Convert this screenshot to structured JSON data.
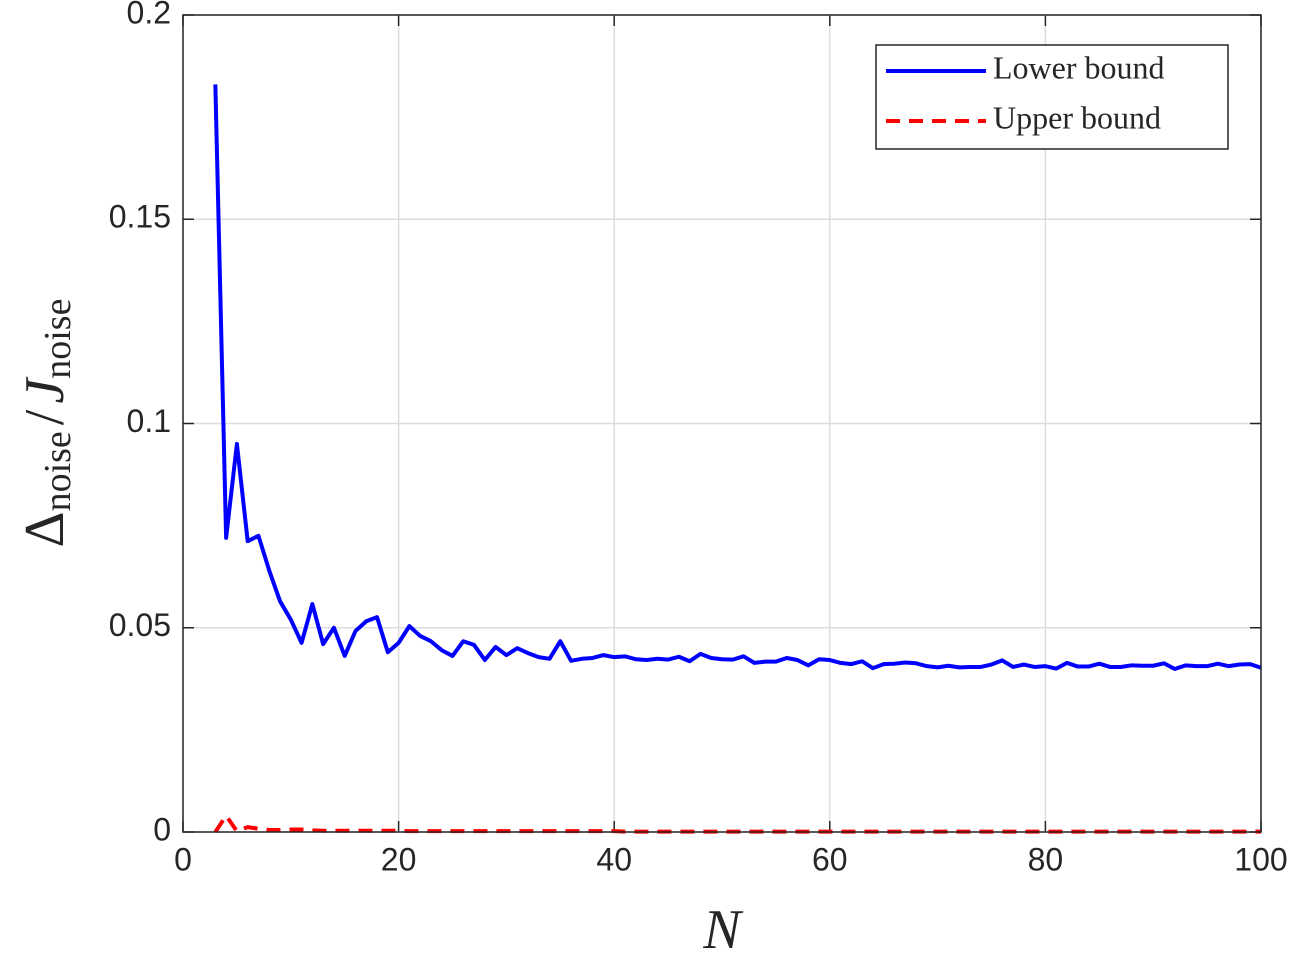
{
  "chart_data": {
    "type": "line",
    "xlabel": "N",
    "ylabel": [
      "Δ",
      "noise",
      "/",
      "J",
      "noise"
    ],
    "x": [
      3,
      4,
      5,
      6,
      7,
      8,
      9,
      10,
      11,
      12,
      13,
      14,
      15,
      16,
      17,
      18,
      19,
      20,
      21,
      22,
      23,
      24,
      25,
      26,
      27,
      28,
      29,
      30,
      31,
      32,
      33,
      34,
      35,
      36,
      37,
      38,
      39,
      40,
      41,
      42,
      43,
      44,
      45,
      46,
      47,
      48,
      49,
      50,
      51,
      52,
      53,
      54,
      55,
      56,
      57,
      58,
      59,
      60,
      61,
      62,
      63,
      64,
      65,
      66,
      67,
      68,
      69,
      70,
      71,
      72,
      73,
      74,
      75,
      76,
      77,
      78,
      79,
      80,
      81,
      82,
      83,
      84,
      85,
      86,
      87,
      88,
      89,
      90,
      91,
      92,
      93,
      94,
      95,
      96,
      97,
      98,
      99,
      100
    ],
    "series": [
      {
        "name": "Lower bound",
        "color": "#0000ff",
        "dash": "solid",
        "values": [
          0.183,
          0.072,
          0.095,
          0.0712,
          0.0725,
          0.064,
          0.0565,
          0.052,
          0.0463,
          0.0558,
          0.046,
          0.05,
          0.0431,
          0.0492,
          0.0516,
          0.0526,
          0.044,
          0.0463,
          0.0504,
          0.048,
          0.0467,
          0.0445,
          0.0431,
          0.0467,
          0.0458,
          0.0421,
          0.0453,
          0.0433,
          0.045,
          0.0438,
          0.0428,
          0.0424,
          0.0467,
          0.0419,
          0.0424,
          0.0426,
          0.0433,
          0.0428,
          0.043,
          0.0423,
          0.0421,
          0.0424,
          0.0422,
          0.0429,
          0.0418,
          0.0436,
          0.0426,
          0.0423,
          0.0422,
          0.043,
          0.0414,
          0.0417,
          0.0417,
          0.0426,
          0.0421,
          0.0408,
          0.0423,
          0.0421,
          0.0414,
          0.0411,
          0.0418,
          0.0401,
          0.0411,
          0.0412,
          0.0415,
          0.0413,
          0.0406,
          0.0403,
          0.0407,
          0.0403,
          0.0404,
          0.0404,
          0.041,
          0.042,
          0.0404,
          0.041,
          0.0404,
          0.0406,
          0.04,
          0.0414,
          0.0405,
          0.0405,
          0.0412,
          0.0404,
          0.0404,
          0.0408,
          0.0407,
          0.0407,
          0.0413,
          0.0399,
          0.0408,
          0.0406,
          0.0406,
          0.0412,
          0.0406,
          0.041,
          0.0411,
          0.0402
        ]
      },
      {
        "name": "Upper bound",
        "color": "#ff0000",
        "dash": "dashed",
        "values": [
          0,
          0.004,
          0.0002,
          0.0012,
          0.0008,
          0.0005,
          0.0005,
          0.0006,
          0.0006,
          0.0004,
          0.0003,
          0.0003,
          0.0003,
          0.0003,
          0.0003,
          0.0003,
          0.0003,
          0.0003,
          0.0002,
          0.0002,
          0.0002,
          0.0002,
          0.0002,
          0.0002,
          0.0002,
          0.0002,
          0.0002,
          0.0002,
          0.0002,
          0.0002,
          0.0002,
          0.0002,
          0.0002,
          0.0002,
          0.0002,
          0.0002,
          0.0002,
          0.0002,
          0.0001,
          0.0001,
          0.0001,
          0.0001,
          0.0001,
          0.0001,
          0.0001,
          0.0001,
          0.0001,
          0.0001,
          0.0001,
          0.0001,
          0.0001,
          0.0001,
          0.0001,
          0.0001,
          0.0001,
          0.0001,
          0.0001,
          0.0001,
          0.0001,
          0.0001,
          0.0001,
          0.0001,
          0.0001,
          0.0001,
          0.0001,
          0.0001,
          0.0001,
          0.0001,
          0.0001,
          0.0001,
          0.0001,
          0.0001,
          0.0001,
          0.0001,
          0.0001,
          0.0001,
          0.0001,
          0.0001,
          0.0001,
          0.0001,
          0.0001,
          0.0001,
          0.0001,
          0.0001,
          0.0001,
          0.0001,
          0.0001,
          0.0001,
          0.0001,
          0.0001,
          0.0001,
          0.0001,
          0.0001,
          0.0001,
          0.0001,
          0.0001,
          0.0001,
          0.0001
        ]
      }
    ],
    "xlim": [
      0,
      100
    ],
    "xticks": [
      0,
      20,
      40,
      60,
      80,
      100
    ],
    "ylim": [
      0,
      0.2
    ],
    "yticks": [
      0,
      0.05,
      0.1,
      0.15,
      0.2
    ],
    "grid": true,
    "legend": "upper right"
  }
}
